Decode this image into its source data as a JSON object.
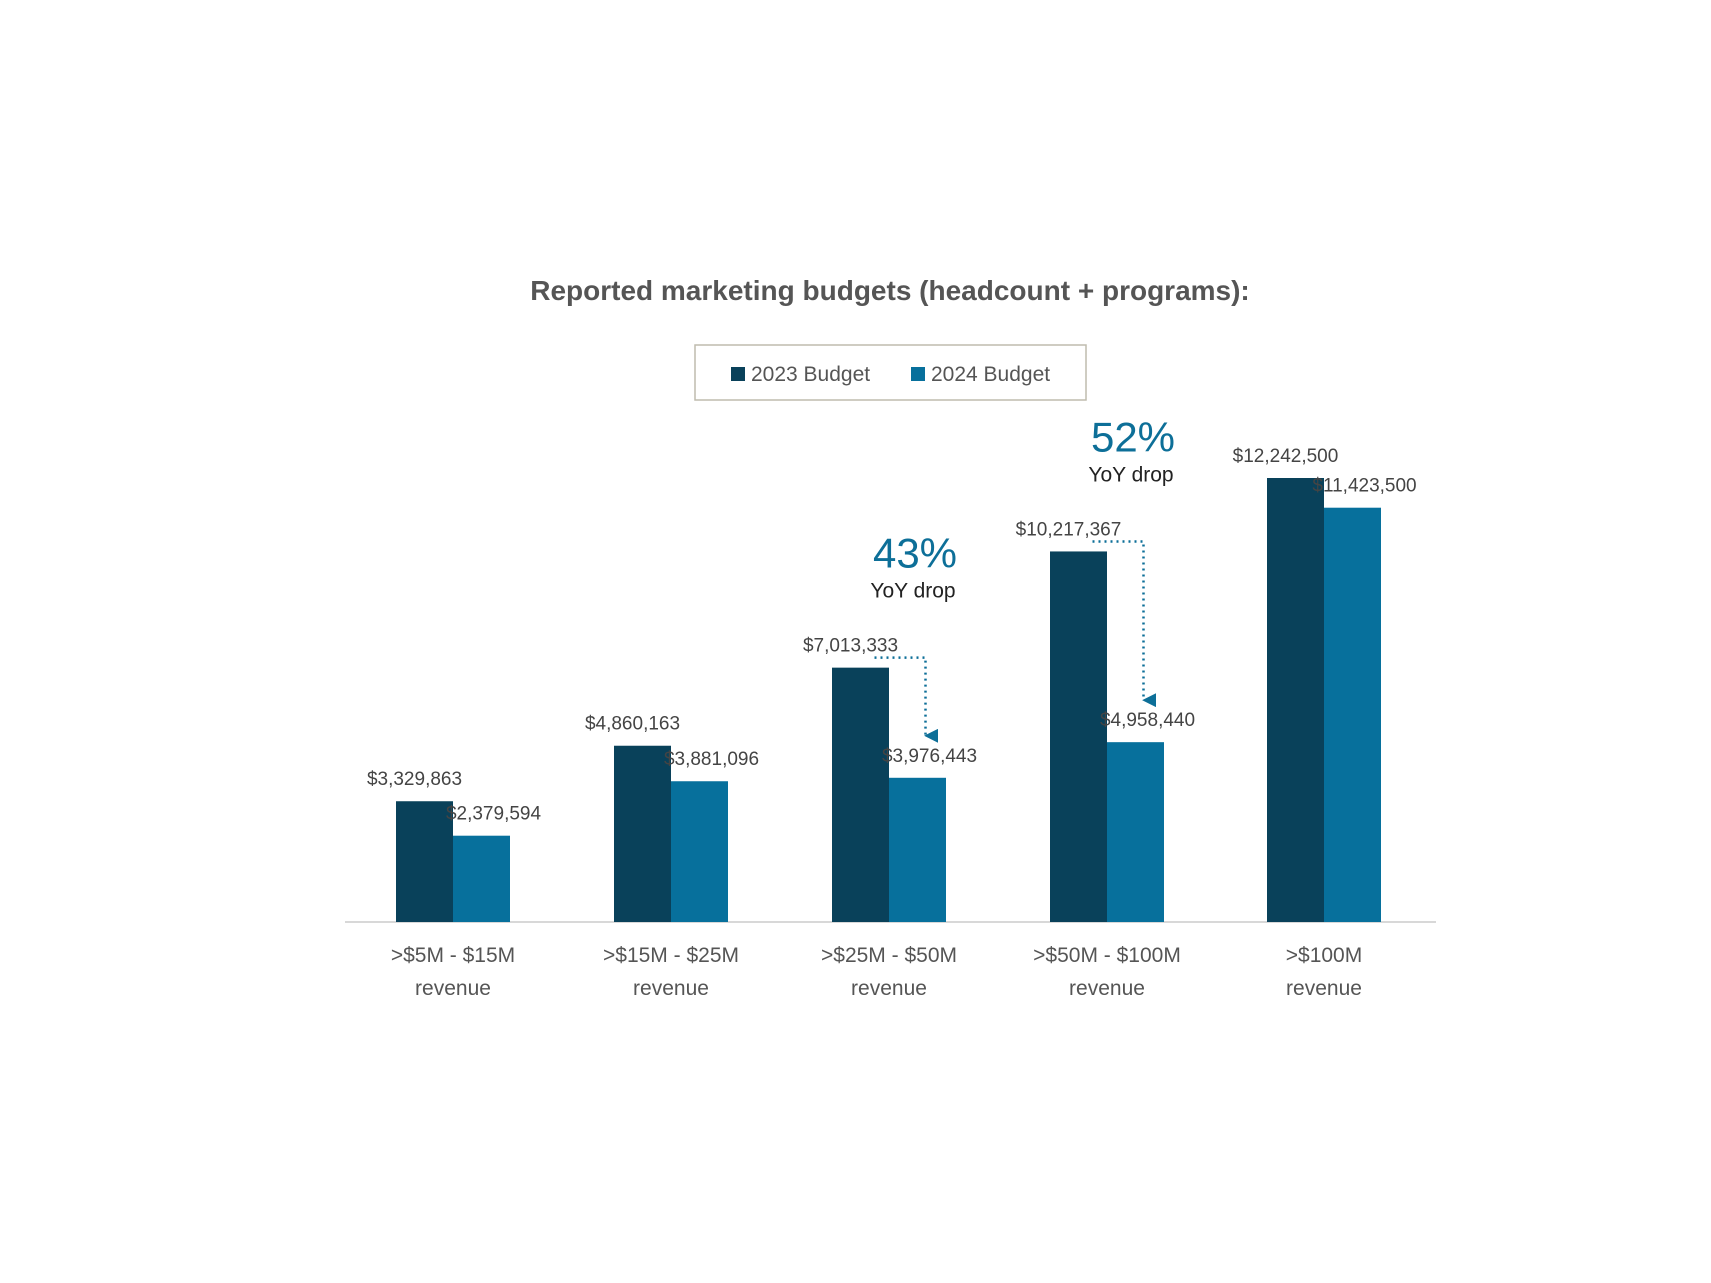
{
  "colors": {
    "series_2023": "#09415a",
    "series_2024": "#07709c",
    "accent": "#0d6f98",
    "axis": "#cccccc",
    "legend_border": "#bfbcae"
  },
  "chart_data": {
    "type": "bar",
    "title": "Reported marketing budgets (headcount + programs):",
    "legend_position": "top-center",
    "grid": false,
    "ylim": [
      0,
      12242500
    ],
    "categories": [
      [
        ">$5M - $15M",
        "revenue"
      ],
      [
        ">$15M - $25M",
        "revenue"
      ],
      [
        ">$25M - $50M",
        "revenue"
      ],
      [
        ">$50M - $100M",
        "revenue"
      ],
      [
        ">$100M",
        "revenue"
      ]
    ],
    "series": [
      {
        "name": "2023 Budget",
        "values": [
          3329863,
          4860163,
          7013333,
          10217367,
          12242500
        ],
        "labels": [
          "$3,329,863",
          "$4,860,163",
          "$7,013,333",
          "$10,217,367",
          "$12,242,500"
        ]
      },
      {
        "name": "2024 Budget",
        "values": [
          2379594,
          3881096,
          3976443,
          4958440,
          11423500
        ],
        "labels": [
          "$2,379,594",
          "$3,881,096",
          "$3,976,443",
          "$4,958,440",
          "$11,423,500"
        ]
      }
    ],
    "annotations": [
      {
        "category_index": 2,
        "percent": "43%",
        "text": "YoY drop"
      },
      {
        "category_index": 3,
        "percent": "52%",
        "text": "YoY drop"
      }
    ]
  }
}
